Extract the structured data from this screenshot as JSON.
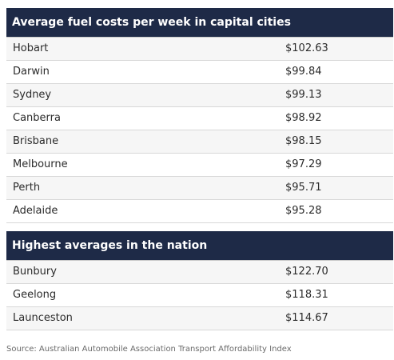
{
  "capital_table": {
    "title": "Average fuel costs per week in capital cities",
    "rows": [
      {
        "city": "Hobart",
        "cost": "$102.63"
      },
      {
        "city": "Darwin",
        "cost": "$99.84"
      },
      {
        "city": "Sydney",
        "cost": "$99.13"
      },
      {
        "city": "Canberra",
        "cost": "$98.92"
      },
      {
        "city": "Brisbane",
        "cost": "$98.15"
      },
      {
        "city": "Melbourne",
        "cost": "$97.29"
      },
      {
        "city": "Perth",
        "cost": "$95.71"
      },
      {
        "city": "Adelaide",
        "cost": "$95.28"
      }
    ]
  },
  "highest_table": {
    "title": "Highest averages in the nation",
    "rows": [
      {
        "city": "Bunbury",
        "cost": "$122.70"
      },
      {
        "city": "Geelong",
        "cost": "$118.31"
      },
      {
        "city": "Launceston",
        "cost": "$114.67"
      }
    ]
  },
  "source": "Source: Australian Automobile Association Transport Affordability Index",
  "colors": {
    "header_background": "#1e2a47",
    "header_text": "#ffffff",
    "row_shaded": "#f6f6f6"
  }
}
